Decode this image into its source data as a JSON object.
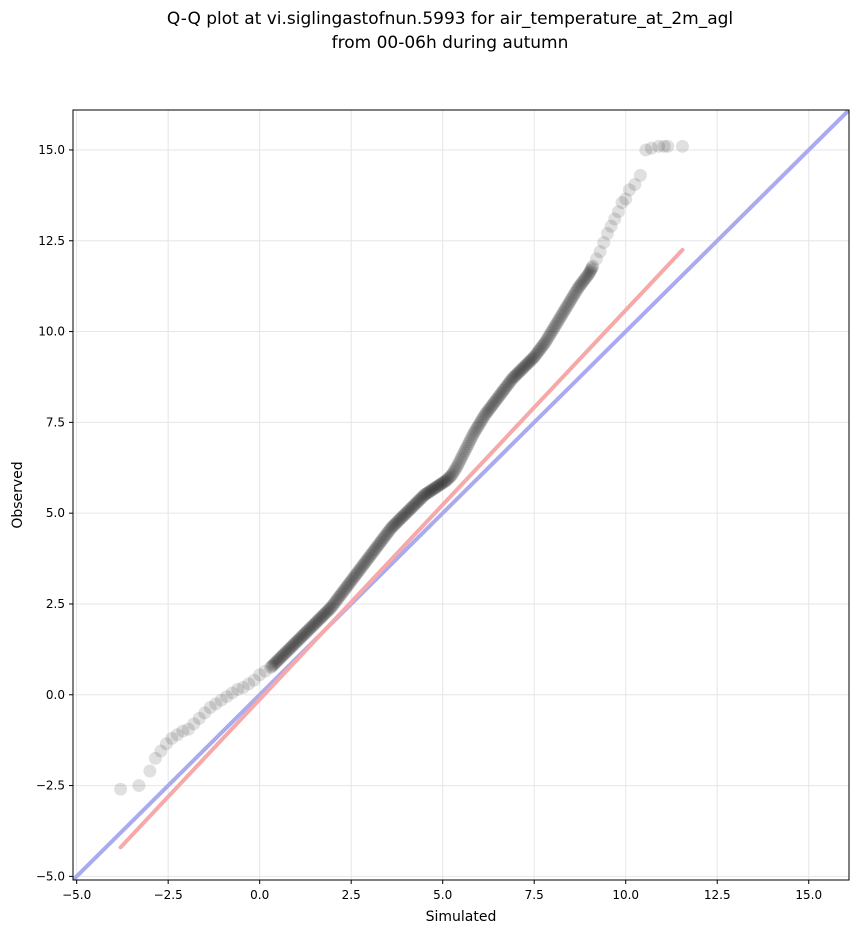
{
  "chart_data": {
    "type": "scatter",
    "title_line1": "Q-Q plot at vi.siglingastofnun.5993 for air_temperature_at_2m_agl",
    "title_line2": "from 00-06h during autumn",
    "xlabel": "Simulated",
    "ylabel": "Observed",
    "xlim": [
      -5.1,
      16.1
    ],
    "ylim": [
      -5.1,
      16.1
    ],
    "xticks": [
      -5.0,
      -2.5,
      0.0,
      2.5,
      5.0,
      7.5,
      10.0,
      12.5,
      15.0
    ],
    "yticks": [
      -5.0,
      -2.5,
      0.0,
      2.5,
      5.0,
      7.5,
      10.0,
      12.5,
      15.0
    ],
    "xtick_labels": [
      "−5.0",
      "−2.5",
      "0.0",
      "2.5",
      "5.0",
      "7.5",
      "10.0",
      "12.5",
      "15.0"
    ],
    "ytick_labels": [
      "−5.0",
      "−2.5",
      "0.0",
      "2.5",
      "5.0",
      "7.5",
      "10.0",
      "12.5",
      "15.0"
    ],
    "grid": true,
    "colors": {
      "points": "#000000",
      "identity_line": "#aaaaf0",
      "fit_line": "#f5a9a9",
      "grid": "#e6e6e6"
    },
    "identity_line": {
      "x": [
        -5.1,
        16.1
      ],
      "y": [
        -5.1,
        16.1
      ]
    },
    "fit_line": {
      "x": [
        -3.8,
        11.55
      ],
      "y": [
        -4.2,
        12.25
      ]
    },
    "quantile_points": {
      "x": [
        -3.8,
        -3.3,
        -3.0,
        -2.85,
        -2.7,
        -2.55,
        -2.4,
        -2.25,
        -2.1,
        -1.95,
        -1.8,
        -1.65,
        -1.5,
        -1.35,
        -1.2,
        -1.05,
        -0.9,
        -0.75,
        -0.6,
        -0.45,
        -0.3,
        -0.15,
        0.0,
        0.15,
        0.3,
        0.45,
        0.6,
        0.75,
        0.9,
        1.05,
        1.2,
        1.35,
        1.5,
        1.65,
        1.8,
        1.95,
        2.1,
        2.25,
        2.4,
        2.55,
        2.7,
        2.85,
        3.0,
        3.15,
        3.3,
        3.45,
        3.6,
        3.75,
        3.9,
        4.05,
        4.2,
        4.35,
        4.5,
        4.65,
        4.8,
        4.95,
        5.1,
        5.25,
        5.4,
        5.55,
        5.7,
        5.85,
        6.0,
        6.15,
        6.3,
        6.45,
        6.6,
        6.75,
        6.9,
        7.05,
        7.2,
        7.35,
        7.5,
        7.65,
        7.8,
        7.95,
        8.1,
        8.25,
        8.4,
        8.55,
        8.7,
        8.85,
        9.0,
        9.1,
        9.2,
        9.3,
        9.4,
        9.5,
        9.6,
        9.7,
        9.8,
        9.9,
        10.0,
        10.1,
        10.25,
        10.4,
        10.55,
        10.7,
        10.9,
        11.05,
        11.15,
        11.55
      ],
      "y": [
        -2.6,
        -2.5,
        -2.1,
        -1.75,
        -1.55,
        -1.35,
        -1.2,
        -1.1,
        -1.0,
        -0.95,
        -0.8,
        -0.65,
        -0.5,
        -0.35,
        -0.25,
        -0.15,
        -0.05,
        0.05,
        0.15,
        0.2,
        0.3,
        0.4,
        0.55,
        0.65,
        0.75,
        0.9,
        1.05,
        1.2,
        1.35,
        1.5,
        1.65,
        1.8,
        1.95,
        2.1,
        2.25,
        2.4,
        2.6,
        2.8,
        3.0,
        3.2,
        3.4,
        3.6,
        3.8,
        4.0,
        4.2,
        4.4,
        4.6,
        4.75,
        4.9,
        5.05,
        5.2,
        5.35,
        5.5,
        5.6,
        5.7,
        5.8,
        5.9,
        6.05,
        6.3,
        6.6,
        6.9,
        7.2,
        7.45,
        7.7,
        7.9,
        8.1,
        8.3,
        8.5,
        8.7,
        8.85,
        9.0,
        9.15,
        9.3,
        9.5,
        9.7,
        9.95,
        10.2,
        10.45,
        10.7,
        10.95,
        11.2,
        11.4,
        11.6,
        11.8,
        12.0,
        12.2,
        12.45,
        12.7,
        12.9,
        13.1,
        13.3,
        13.55,
        13.65,
        13.9,
        14.05,
        14.3,
        15.0,
        15.05,
        15.1,
        15.1,
        15.1,
        15.1
      ]
    }
  }
}
